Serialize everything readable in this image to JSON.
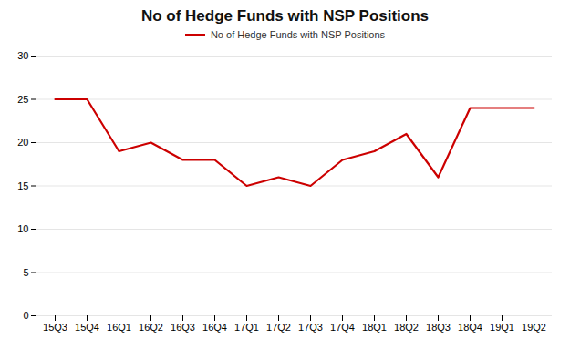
{
  "chart_data": {
    "type": "line",
    "title": "No of Hedge Funds with NSP Positions",
    "categories": [
      "15Q3",
      "15Q4",
      "16Q1",
      "16Q2",
      "16Q3",
      "16Q4",
      "17Q1",
      "17Q2",
      "17Q3",
      "17Q4",
      "18Q1",
      "18Q2",
      "18Q3",
      "18Q4",
      "19Q1",
      "19Q2"
    ],
    "series": [
      {
        "name": "No of Hedge Funds with NSP Positions",
        "color": "#cc0000",
        "values": [
          25,
          25,
          19,
          20,
          18,
          18,
          15,
          16,
          15,
          18,
          19,
          21,
          16,
          24,
          24,
          24
        ]
      }
    ],
    "ylim": [
      0,
      30
    ],
    "yticks": [
      0,
      5,
      10,
      15,
      20,
      25,
      30
    ],
    "grid": true
  }
}
